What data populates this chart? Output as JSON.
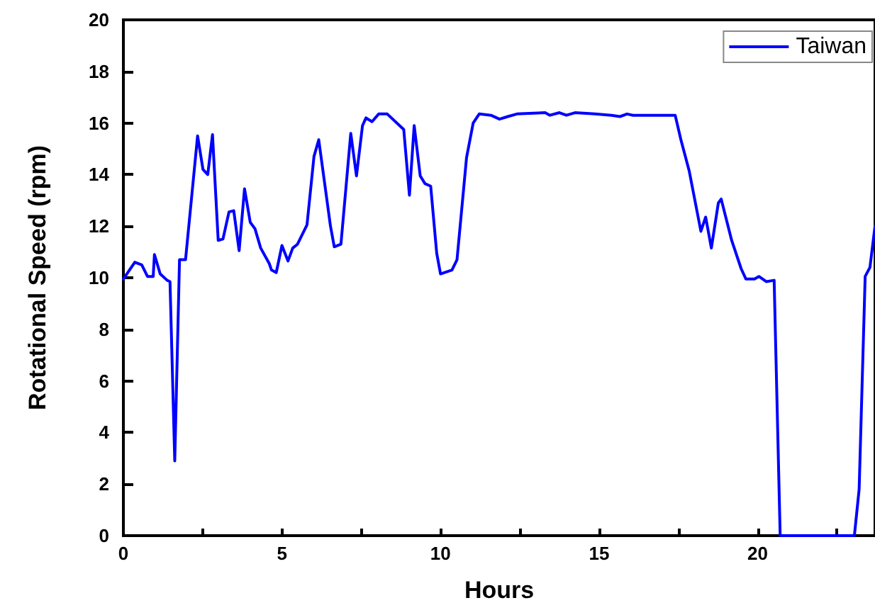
{
  "chart_data": {
    "type": "line",
    "xlabel": "Hours",
    "ylabel": "Rotational Speed (rpm)",
    "xlim": [
      0,
      23.7
    ],
    "ylim": [
      0,
      20
    ],
    "xticks": [
      0,
      {
        "value": 2.5,
        "label": null
      },
      5,
      {
        "value": 7.5,
        "label": null
      },
      10,
      {
        "value": 12.5,
        "label": null
      },
      15,
      {
        "value": 17.5,
        "label": null
      },
      20,
      {
        "value": 22.5,
        "label": null
      }
    ],
    "yticks": [
      0,
      2,
      4,
      6,
      8,
      10,
      12,
      14,
      16,
      18,
      20
    ],
    "legend": "top right",
    "grid": false,
    "marker": "none",
    "line_style": "solid",
    "series": [
      {
        "name": "Taiwan",
        "color": "#0000ff",
        "x": [
          0,
          0.36,
          0.58,
          0.76,
          0.94,
          0.98,
          1.16,
          1.38,
          1.47,
          1.62,
          1.77,
          1.96,
          2.34,
          2.51,
          2.66,
          2.81,
          2.99,
          3.14,
          3.33,
          3.48,
          3.65,
          3.82,
          4.0,
          4.15,
          4.33,
          4.6,
          4.67,
          4.82,
          5.0,
          5.19,
          5.34,
          5.49,
          5.79,
          6.01,
          6.16,
          6.53,
          6.65,
          6.86,
          7.17,
          7.35,
          7.54,
          7.65,
          7.84,
          8.05,
          8.32,
          8.84,
          9.02,
          9.17,
          9.36,
          9.51,
          9.69,
          9.88,
          10.0,
          10.36,
          10.52,
          10.82,
          11.03,
          11.22,
          11.59,
          11.86,
          12.12,
          12.41,
          13.3,
          13.45,
          13.75,
          13.97,
          14.24,
          14.87,
          15.39,
          15.66,
          15.88,
          16.07,
          16.96,
          17.1,
          17.4,
          17.58,
          17.84,
          18.21,
          18.36,
          18.54,
          18.76,
          18.85,
          19.18,
          19.48,
          19.63,
          19.9,
          20.04,
          20.27,
          20.52,
          20.71,
          23.05,
          23.2,
          23.39,
          23.54,
          23.7
        ],
        "values": [
          9.95,
          10.6,
          10.5,
          10.05,
          10.05,
          10.9,
          10.15,
          9.9,
          9.85,
          2.9,
          10.7,
          10.7,
          15.5,
          14.2,
          14.0,
          15.55,
          11.45,
          11.5,
          12.55,
          12.6,
          11.05,
          13.45,
          12.15,
          11.9,
          11.15,
          10.55,
          10.3,
          10.2,
          11.25,
          10.65,
          11.15,
          11.3,
          12.05,
          14.7,
          15.35,
          12.0,
          11.2,
          11.3,
          15.6,
          13.95,
          15.9,
          16.2,
          16.05,
          16.35,
          16.35,
          15.75,
          13.2,
          15.9,
          13.95,
          13.65,
          13.55,
          10.95,
          10.15,
          10.3,
          10.7,
          14.65,
          16.0,
          16.35,
          16.3,
          16.15,
          16.25,
          16.35,
          16.4,
          16.3,
          16.4,
          16.3,
          16.4,
          16.35,
          16.3,
          16.25,
          16.35,
          16.3,
          16.3,
          16.3,
          16.3,
          15.35,
          14.15,
          11.8,
          12.35,
          11.15,
          12.9,
          13.05,
          11.45,
          10.35,
          9.95,
          9.95,
          10.05,
          9.85,
          9.9,
          0,
          0,
          1.8,
          10.05,
          10.4,
          12.0
        ]
      }
    ]
  }
}
